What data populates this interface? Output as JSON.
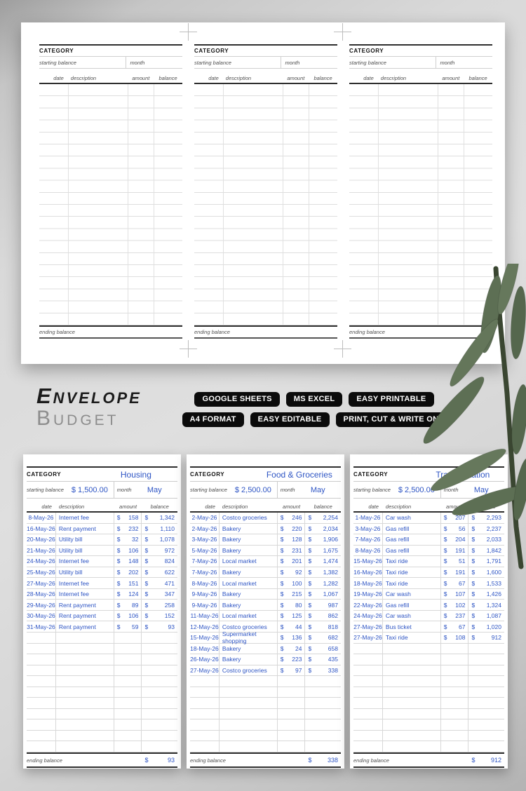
{
  "labels": {
    "category": "CATEGORY",
    "starting_balance": "starting balance",
    "month": "month",
    "ending_balance": "ending balance",
    "currency": "$",
    "columns": {
      "date": "date",
      "description": "description",
      "amount": "amount",
      "balance": "balance"
    }
  },
  "title": {
    "line1": "Envelope",
    "line2": "Budget"
  },
  "badges": {
    "rows": [
      [
        "GOOGLE SHEETS",
        "MS EXCEL",
        "EASY PRINTABLE"
      ],
      [
        "A4 FORMAT",
        "EASY EDITABLE",
        "PRINT, CUT & WRITE ON"
      ]
    ]
  },
  "colors": {
    "accent_blue": "#2e55c4",
    "badge_bg": "#0b0b0b",
    "leaf_green": "#5f7156"
  },
  "cards": [
    {
      "category": "Housing",
      "starting_balance": "$ 1,500.00",
      "month": "May",
      "ending_balance": "93",
      "entries": [
        {
          "date": "8-May-26",
          "description": "Internet fee",
          "amount": "158",
          "balance": "1,342"
        },
        {
          "date": "16-May-26",
          "description": "Rent payment",
          "amount": "232",
          "balance": "1,110"
        },
        {
          "date": "20-May-26",
          "description": "Utility bill",
          "amount": "32",
          "balance": "1,078"
        },
        {
          "date": "21-May-26",
          "description": "Utility bill",
          "amount": "106",
          "balance": "972"
        },
        {
          "date": "24-May-26",
          "description": "Internet fee",
          "amount": "148",
          "balance": "824"
        },
        {
          "date": "25-May-26",
          "description": "Utility bill",
          "amount": "202",
          "balance": "622"
        },
        {
          "date": "27-May-26",
          "description": "Internet fee",
          "amount": "151",
          "balance": "471"
        },
        {
          "date": "28-May-26",
          "description": "Internet fee",
          "amount": "124",
          "balance": "347"
        },
        {
          "date": "29-May-26",
          "description": "Rent payment",
          "amount": "89",
          "balance": "258"
        },
        {
          "date": "30-May-26",
          "description": "Rent payment",
          "amount": "106",
          "balance": "152"
        },
        {
          "date": "31-May-26",
          "description": "Rent payment",
          "amount": "59",
          "balance": "93"
        }
      ]
    },
    {
      "category": "Food & Groceries",
      "starting_balance": "$ 2,500.00",
      "month": "May",
      "ending_balance": "338",
      "entries": [
        {
          "date": "2-May-26",
          "description": "Costco groceries",
          "amount": "246",
          "balance": "2,254"
        },
        {
          "date": "2-May-26",
          "description": "Bakery",
          "amount": "220",
          "balance": "2,034"
        },
        {
          "date": "3-May-26",
          "description": "Bakery",
          "amount": "128",
          "balance": "1,906"
        },
        {
          "date": "5-May-26",
          "description": "Bakery",
          "amount": "231",
          "balance": "1,675"
        },
        {
          "date": "7-May-26",
          "description": "Local market",
          "amount": "201",
          "balance": "1,474"
        },
        {
          "date": "7-May-26",
          "description": "Bakery",
          "amount": "92",
          "balance": "1,382"
        },
        {
          "date": "8-May-26",
          "description": "Local market",
          "amount": "100",
          "balance": "1,282"
        },
        {
          "date": "9-May-26",
          "description": "Bakery",
          "amount": "215",
          "balance": "1,067"
        },
        {
          "date": "9-May-26",
          "description": "Bakery",
          "amount": "80",
          "balance": "987"
        },
        {
          "date": "11-May-26",
          "description": "Local market",
          "amount": "125",
          "balance": "862"
        },
        {
          "date": "12-May-26",
          "description": "Costco groceries",
          "amount": "44",
          "balance": "818"
        },
        {
          "date": "15-May-26",
          "description": "Supermarket shopping",
          "amount": "136",
          "balance": "682"
        },
        {
          "date": "18-May-26",
          "description": "Bakery",
          "amount": "24",
          "balance": "658"
        },
        {
          "date": "26-May-26",
          "description": "Bakery",
          "amount": "223",
          "balance": "435"
        },
        {
          "date": "27-May-26",
          "description": "Costco groceries",
          "amount": "97",
          "balance": "338"
        }
      ]
    },
    {
      "category": "Transportation",
      "starting_balance": "$ 2,500.00",
      "month": "May",
      "ending_balance": "912",
      "entries": [
        {
          "date": "1-May-26",
          "description": "Car wash",
          "amount": "207",
          "balance": "2,293"
        },
        {
          "date": "3-May-26",
          "description": "Gas refill",
          "amount": "56",
          "balance": "2,237"
        },
        {
          "date": "7-May-26",
          "description": "Gas refill",
          "amount": "204",
          "balance": "2,033"
        },
        {
          "date": "8-May-26",
          "description": "Gas refill",
          "amount": "191",
          "balance": "1,842"
        },
        {
          "date": "15-May-26",
          "description": "Taxi ride",
          "amount": "51",
          "balance": "1,791"
        },
        {
          "date": "16-May-26",
          "description": "Taxi ride",
          "amount": "191",
          "balance": "1,600"
        },
        {
          "date": "18-May-26",
          "description": "Taxi ride",
          "amount": "67",
          "balance": "1,533"
        },
        {
          "date": "19-May-26",
          "description": "Car wash",
          "amount": "107",
          "balance": "1,426"
        },
        {
          "date": "22-May-26",
          "description": "Gas refill",
          "amount": "102",
          "balance": "1,324"
        },
        {
          "date": "24-May-26",
          "description": "Car wash",
          "amount": "237",
          "balance": "1,087"
        },
        {
          "date": "27-May-26",
          "description": "Bus ticket",
          "amount": "67",
          "balance": "1,020"
        },
        {
          "date": "27-May-26",
          "description": "Taxi ride",
          "amount": "108",
          "balance": "912"
        }
      ]
    }
  ]
}
